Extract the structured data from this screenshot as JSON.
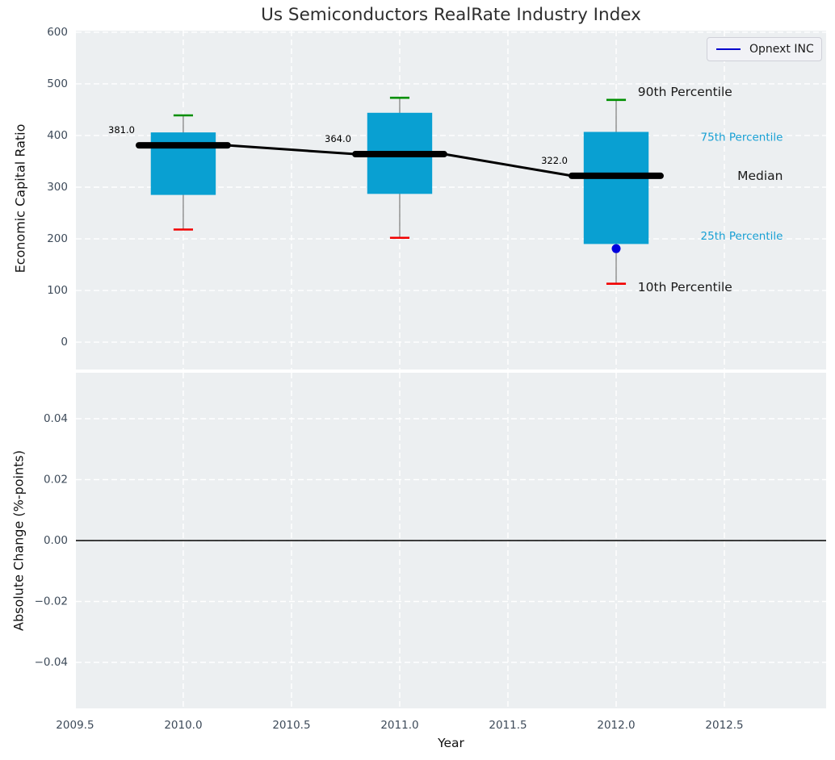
{
  "title": "Us Semiconductors RealRate Industry Index",
  "legend": {
    "label": "Opnext INC",
    "line_color": "#0000cd"
  },
  "top_panel": {
    "ylabel": "Economic Capital Ratio"
  },
  "bottom_panel": {
    "ylabel": "Absolute Change (%-points)"
  },
  "x_axis": {
    "label": "Year"
  },
  "colors": {
    "panel_bg": "#eceff1",
    "grid": "#ffffff",
    "box_fill": "#09a0d2",
    "p90_cap": "#008f00",
    "p10_cap": "#f20000",
    "whisker": "#7a7a7a",
    "median_line": "#000000",
    "company_point": "#0000dd",
    "legend_line": "#0000cd",
    "tick_label": "#3d4a59",
    "axis_label": "#111111",
    "title": "#2e2e2e",
    "percentile_blue": "#18a0d4",
    "annotation_black": "#1a1a1a",
    "zero_line": "#000000"
  },
  "chart_data": [
    {
      "type": "boxplot",
      "title": "Us Semiconductors RealRate Industry Index",
      "xlabel": "Year",
      "ylabel": "Economic Capital Ratio",
      "xlim": [
        2009.504,
        2012.97
      ],
      "ylim": [
        -53,
        603
      ],
      "yticks": [
        0,
        100,
        200,
        300,
        400,
        500,
        600
      ],
      "ytick_labels": [
        "0",
        "100",
        "200",
        "300",
        "400",
        "500",
        "600"
      ],
      "xticks": [
        2009.5,
        2010.0,
        2010.5,
        2011.0,
        2011.5,
        2012.0,
        2012.5
      ],
      "xtick_labels": [
        "2009.5",
        "2010.0",
        "2010.5",
        "2011.0",
        "2011.5",
        "2012.0",
        "2012.5"
      ],
      "grid": true,
      "legend_position": "upper right",
      "series_label": "Opnext INC",
      "boxes": [
        {
          "year": 2010,
          "p10": 218,
          "p25": 285,
          "median": 381,
          "p75": 406,
          "p90": 439,
          "median_label": "381.0"
        },
        {
          "year": 2011,
          "p10": 202,
          "p25": 287,
          "median": 364,
          "p75": 444,
          "p90": 473,
          "median_label": "364.0"
        },
        {
          "year": 2012,
          "p10": 113,
          "p25": 190,
          "median": 322,
          "p75": 407,
          "p90": 469,
          "median_label": "322.0"
        }
      ],
      "company_points": [
        {
          "year": 2012,
          "value": 181,
          "label": "Opnext INC"
        }
      ],
      "annotations": [
        {
          "text": "90th Percentile",
          "x": 2012.1,
          "y": 484,
          "size": 15.5,
          "color_key": "annotation_black"
        },
        {
          "text": "75th Percentile",
          "x": 2012.39,
          "y": 396,
          "size": 13.5,
          "color_key": "percentile_blue"
        },
        {
          "text": "Median",
          "x": 2012.56,
          "y": 322,
          "size": 15.5,
          "color_key": "annotation_black"
        },
        {
          "text": "25th Percentile",
          "x": 2012.39,
          "y": 205,
          "size": 13.5,
          "color_key": "percentile_blue"
        },
        {
          "text": "10th Percentile",
          "x": 2012.1,
          "y": 106,
          "size": 15.5,
          "color_key": "annotation_black"
        }
      ]
    },
    {
      "type": "line",
      "xlabel": "Year",
      "ylabel": "Absolute Change (%-points)",
      "ylim": [
        -0.0551,
        0.0551
      ],
      "yticks": [
        0.04,
        0.02,
        0.0,
        -0.02,
        -0.04
      ],
      "ytick_labels": [
        "0.04",
        "0.02",
        "0.00",
        "−0.02",
        "−0.04"
      ],
      "zero_line": 0.0,
      "grid": true,
      "series": []
    }
  ]
}
